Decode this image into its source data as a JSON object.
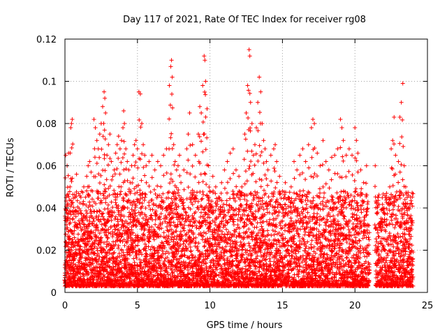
{
  "chart_data": {
    "type": "scatter",
    "title": "Day 117 of 2021, Rate Of TEC Index for receiver rg08",
    "xlabel": "GPS time / hours",
    "ylabel": "ROTI / TECUs",
    "xlim": [
      0,
      25
    ],
    "ylim": [
      0,
      0.12
    ],
    "xticks": [
      0,
      5,
      10,
      15,
      20,
      25
    ],
    "xtick_labels": [
      "0",
      "5",
      "10",
      "15",
      "20",
      "25"
    ],
    "yticks": [
      0,
      0.02,
      0.04,
      0.06,
      0.08,
      0.1,
      0.12
    ],
    "ytick_labels": [
      "0",
      "0.02",
      "0.04",
      "0.06",
      "0.08",
      "0.1",
      "0.12"
    ],
    "grid": true,
    "marker": "plus",
    "color": "#ff0000",
    "data_gap_hours": [
      21.0,
      21.4
    ],
    "series": [
      {
        "points": [
          [
            0.0,
            0.008
          ],
          [
            0.05,
            0.065
          ],
          [
            0.1,
            0.03
          ],
          [
            0.15,
            0.06
          ],
          [
            0.2,
            0.042
          ],
          [
            0.25,
            0.066
          ],
          [
            0.3,
            0.02
          ],
          [
            0.35,
            0.05
          ],
          [
            0.4,
            0.078
          ],
          [
            0.45,
            0.08
          ],
          [
            0.5,
            0.082
          ],
          [
            0.55,
            0.035
          ],
          [
            0.6,
            0.015
          ],
          [
            0.7,
            0.045
          ],
          [
            0.8,
            0.056
          ],
          [
            0.9,
            0.038
          ],
          [
            1.0,
            0.022
          ],
          [
            1.1,
            0.045
          ],
          [
            1.2,
            0.03
          ],
          [
            1.3,
            0.05
          ],
          [
            1.4,
            0.035
          ],
          [
            1.5,
            0.055
          ],
          [
            1.6,
            0.06
          ],
          [
            1.7,
            0.062
          ],
          [
            1.8,
            0.057
          ],
          [
            1.9,
            0.048
          ],
          [
            2.0,
            0.082
          ],
          [
            2.1,
            0.078
          ],
          [
            2.2,
            0.072
          ],
          [
            2.3,
            0.068
          ],
          [
            2.4,
            0.075
          ],
          [
            2.5,
            0.08
          ],
          [
            2.6,
            0.088
          ],
          [
            2.7,
            0.095
          ],
          [
            2.75,
            0.092
          ],
          [
            2.8,
            0.085
          ],
          [
            2.9,
            0.065
          ],
          [
            3.0,
            0.07
          ],
          [
            3.1,
            0.075
          ],
          [
            3.2,
            0.062
          ],
          [
            3.3,
            0.055
          ],
          [
            3.4,
            0.058
          ],
          [
            3.5,
            0.066
          ],
          [
            3.6,
            0.07
          ],
          [
            3.7,
            0.074
          ],
          [
            3.8,
            0.068
          ],
          [
            3.9,
            0.072
          ],
          [
            4.0,
            0.078
          ],
          [
            4.05,
            0.086
          ],
          [
            4.1,
            0.08
          ],
          [
            4.2,
            0.068
          ],
          [
            4.3,
            0.062
          ],
          [
            4.4,
            0.058
          ],
          [
            4.5,
            0.052
          ],
          [
            4.6,
            0.06
          ],
          [
            4.7,
            0.065
          ],
          [
            4.8,
            0.07
          ],
          [
            4.9,
            0.072
          ],
          [
            5.0,
            0.068
          ],
          [
            5.1,
            0.095
          ],
          [
            5.2,
            0.094
          ],
          [
            5.3,
            0.08
          ],
          [
            5.4,
            0.07
          ],
          [
            5.5,
            0.065
          ],
          [
            5.6,
            0.06
          ],
          [
            5.8,
            0.062
          ],
          [
            6.0,
            0.065
          ],
          [
            6.2,
            0.058
          ],
          [
            6.4,
            0.062
          ],
          [
            6.6,
            0.06
          ],
          [
            6.8,
            0.065
          ],
          [
            7.0,
            0.068
          ],
          [
            7.2,
            0.098
          ],
          [
            7.3,
            0.107
          ],
          [
            7.35,
            0.11
          ],
          [
            7.4,
            0.102
          ],
          [
            7.5,
            0.07
          ],
          [
            7.6,
            0.062
          ],
          [
            7.7,
            0.058
          ],
          [
            7.8,
            0.06
          ],
          [
            7.9,
            0.065
          ],
          [
            8.0,
            0.052
          ],
          [
            8.2,
            0.058
          ],
          [
            8.4,
            0.068
          ],
          [
            8.5,
            0.075
          ],
          [
            8.6,
            0.085
          ],
          [
            8.8,
            0.07
          ],
          [
            9.0,
            0.065
          ],
          [
            9.2,
            0.075
          ],
          [
            9.3,
            0.088
          ],
          [
            9.4,
            0.085
          ],
          [
            9.5,
            0.098
          ],
          [
            9.6,
            0.112
          ],
          [
            9.65,
            0.11
          ],
          [
            9.7,
            0.1
          ],
          [
            9.8,
            0.087
          ],
          [
            9.9,
            0.06
          ],
          [
            10.0,
            0.048
          ],
          [
            10.2,
            0.055
          ],
          [
            10.4,
            0.05
          ],
          [
            10.6,
            0.045
          ],
          [
            10.8,
            0.052
          ],
          [
            11.0,
            0.058
          ],
          [
            11.2,
            0.062
          ],
          [
            11.4,
            0.066
          ],
          [
            11.6,
            0.068
          ],
          [
            11.8,
            0.058
          ],
          [
            12.0,
            0.055
          ],
          [
            12.2,
            0.05
          ],
          [
            12.4,
            0.075
          ],
          [
            12.5,
            0.085
          ],
          [
            12.6,
            0.098
          ],
          [
            12.7,
            0.115
          ],
          [
            12.75,
            0.112
          ],
          [
            12.8,
            0.09
          ],
          [
            12.9,
            0.08
          ],
          [
            13.0,
            0.065
          ],
          [
            13.1,
            0.07
          ],
          [
            13.2,
            0.078
          ],
          [
            13.3,
            0.09
          ],
          [
            13.4,
            0.102
          ],
          [
            13.5,
            0.095
          ],
          [
            13.6,
            0.08
          ],
          [
            13.7,
            0.072
          ],
          [
            13.8,
            0.068
          ],
          [
            13.9,
            0.062
          ],
          [
            14.0,
            0.058
          ],
          [
            14.2,
            0.065
          ],
          [
            14.4,
            0.068
          ],
          [
            14.5,
            0.07
          ],
          [
            14.6,
            0.062
          ],
          [
            14.8,
            0.055
          ],
          [
            15.0,
            0.048
          ],
          [
            15.2,
            0.052
          ],
          [
            15.4,
            0.045
          ],
          [
            15.6,
            0.05
          ],
          [
            15.8,
            0.062
          ],
          [
            16.0,
            0.058
          ],
          [
            16.2,
            0.065
          ],
          [
            16.4,
            0.068
          ],
          [
            16.6,
            0.062
          ],
          [
            16.8,
            0.07
          ],
          [
            17.0,
            0.078
          ],
          [
            17.1,
            0.082
          ],
          [
            17.2,
            0.08
          ],
          [
            17.4,
            0.066
          ],
          [
            17.6,
            0.06
          ],
          [
            17.8,
            0.072
          ],
          [
            18.0,
            0.062
          ],
          [
            18.2,
            0.058
          ],
          [
            18.4,
            0.064
          ],
          [
            18.6,
            0.065
          ],
          [
            18.8,
            0.068
          ],
          [
            19.0,
            0.082
          ],
          [
            19.1,
            0.078
          ],
          [
            19.2,
            0.072
          ],
          [
            19.4,
            0.065
          ],
          [
            19.6,
            0.068
          ],
          [
            19.8,
            0.065
          ],
          [
            20.0,
            0.078
          ],
          [
            20.1,
            0.072
          ],
          [
            20.2,
            0.066
          ],
          [
            20.4,
            0.058
          ],
          [
            20.6,
            0.052
          ],
          [
            20.8,
            0.06
          ],
          [
            21.4,
            0.06
          ],
          [
            21.6,
            0.045
          ],
          [
            21.8,
            0.035
          ],
          [
            22.0,
            0.04
          ],
          [
            22.2,
            0.045
          ],
          [
            22.4,
            0.05
          ],
          [
            22.5,
            0.068
          ],
          [
            22.6,
            0.072
          ],
          [
            22.7,
            0.083
          ],
          [
            22.8,
            0.065
          ],
          [
            23.0,
            0.062
          ],
          [
            23.1,
            0.083
          ],
          [
            23.2,
            0.09
          ],
          [
            23.3,
            0.099
          ],
          [
            23.4,
            0.06
          ],
          [
            23.5,
            0.05
          ],
          [
            23.6,
            0.045
          ],
          [
            23.7,
            0.04
          ],
          [
            23.8,
            0.035
          ],
          [
            23.9,
            0.03
          ]
        ]
      }
    ]
  }
}
